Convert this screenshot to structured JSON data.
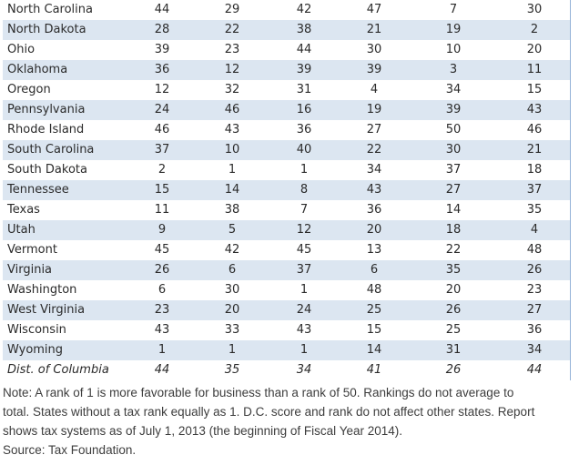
{
  "table": {
    "description": "State business tax climate rank table (lower rank = more favorable)",
    "rows": [
      {
        "state": "North Carolina",
        "values": [
          44,
          29,
          42,
          47,
          7,
          30
        ]
      },
      {
        "state": "North Dakota",
        "values": [
          28,
          22,
          38,
          21,
          19,
          2
        ]
      },
      {
        "state": "Ohio",
        "values": [
          39,
          23,
          44,
          30,
          10,
          20
        ]
      },
      {
        "state": "Oklahoma",
        "values": [
          36,
          12,
          39,
          39,
          3,
          11
        ]
      },
      {
        "state": "Oregon",
        "values": [
          12,
          32,
          31,
          4,
          34,
          15
        ]
      },
      {
        "state": "Pennsylvania",
        "values": [
          24,
          46,
          16,
          19,
          39,
          43
        ]
      },
      {
        "state": "Rhode Island",
        "values": [
          46,
          43,
          36,
          27,
          50,
          46
        ]
      },
      {
        "state": "South Carolina",
        "values": [
          37,
          10,
          40,
          22,
          30,
          21
        ]
      },
      {
        "state": "South Dakota",
        "values": [
          2,
          1,
          1,
          34,
          37,
          18
        ]
      },
      {
        "state": "Tennessee",
        "values": [
          15,
          14,
          8,
          43,
          27,
          37
        ]
      },
      {
        "state": "Texas",
        "values": [
          11,
          38,
          7,
          36,
          14,
          35
        ]
      },
      {
        "state": "Utah",
        "values": [
          9,
          5,
          12,
          20,
          18,
          4
        ]
      },
      {
        "state": "Vermont",
        "values": [
          45,
          42,
          45,
          13,
          22,
          48
        ]
      },
      {
        "state": "Virginia",
        "values": [
          26,
          6,
          37,
          6,
          35,
          26
        ]
      },
      {
        "state": "Washington",
        "values": [
          6,
          30,
          1,
          48,
          20,
          23
        ]
      },
      {
        "state": "West Virginia",
        "values": [
          23,
          20,
          24,
          25,
          26,
          27
        ]
      },
      {
        "state": "Wisconsin",
        "values": [
          43,
          33,
          43,
          15,
          25,
          36
        ]
      },
      {
        "state": "Wyoming",
        "values": [
          1,
          1,
          1,
          14,
          31,
          34
        ]
      },
      {
        "state": "Dist. of Columbia",
        "values": [
          44,
          35,
          34,
          41,
          26,
          44
        ],
        "italic": true
      }
    ]
  },
  "note": {
    "lines": [
      "Note: A rank of 1 is more favorable for business than a rank of 50. Rankings do not average to",
      "total. States without a tax rank equally as 1. D.C. score and rank do not affect other states. Report",
      "shows tax systems as of July 1, 2013 (the beginning of Fiscal Year 2014)."
    ],
    "source": "Source: Tax Foundation."
  },
  "colors": {
    "stripe_blue": "#dce6f1",
    "table_border": "#95b3d7"
  }
}
